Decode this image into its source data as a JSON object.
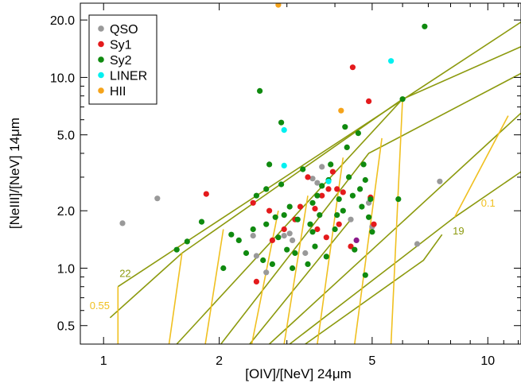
{
  "chart_data": {
    "type": "scatter",
    "xlabel": "[OIV]/[NeV] 24μm",
    "ylabel": "[NeIII]/[NeV] 14μm",
    "xscale": "log",
    "yscale": "log",
    "xlim": [
      0.87,
      12.2
    ],
    "ylim": [
      0.4,
      24.5
    ],
    "xticks": [
      {
        "v": 1,
        "label": "1"
      },
      {
        "v": 2,
        "label": "2"
      },
      {
        "v": 5,
        "label": "5"
      },
      {
        "v": 10,
        "label": "10"
      }
    ],
    "yticks": [
      {
        "v": 0.5,
        "label": "0.5"
      },
      {
        "v": 1,
        "label": "1.0"
      },
      {
        "v": 2,
        "label": "2.0"
      },
      {
        "v": 5,
        "label": "5.0"
      },
      {
        "v": 10,
        "label": "10.0"
      },
      {
        "v": 20,
        "label": "20.0"
      }
    ],
    "grid": false,
    "legend_position": "top-left",
    "series": [
      {
        "name": "QSO",
        "color": "#999999",
        "points": [
          [
            1.12,
            1.72
          ],
          [
            1.38,
            2.32
          ],
          [
            2.45,
            1.48
          ],
          [
            2.5,
            1.16
          ],
          [
            2.65,
            0.95
          ],
          [
            2.95,
            1.48
          ],
          [
            3.05,
            1.52
          ],
          [
            3.1,
            1.4
          ],
          [
            3.35,
            1.2
          ],
          [
            3.5,
            2.95
          ],
          [
            3.6,
            2.8
          ],
          [
            3.7,
            3.4
          ],
          [
            4.4,
            1.8
          ],
          [
            4.9,
            2.2
          ],
          [
            5.0,
            1.65
          ],
          [
            6.55,
            1.34
          ],
          [
            7.5,
            2.85
          ]
        ]
      },
      {
        "name": "Sy1",
        "color": "#e41a1c",
        "points": [
          [
            1.85,
            2.45
          ],
          [
            2.45,
            2.2
          ],
          [
            2.5,
            0.85
          ],
          [
            2.7,
            2.0
          ],
          [
            2.75,
            1.4
          ],
          [
            2.95,
            1.6
          ],
          [
            3.15,
            1.8
          ],
          [
            3.25,
            2.1
          ],
          [
            3.4,
            3.0
          ],
          [
            3.55,
            2.05
          ],
          [
            3.6,
            1.6
          ],
          [
            3.7,
            2.4
          ],
          [
            3.8,
            1.45
          ],
          [
            3.85,
            2.6
          ],
          [
            3.95,
            3.2
          ],
          [
            4.05,
            2.6
          ],
          [
            4.1,
            1.7
          ],
          [
            4.2,
            2.5
          ],
          [
            4.4,
            1.3
          ],
          [
            4.45,
            11.3
          ],
          [
            4.9,
            7.5
          ],
          [
            4.95,
            2.35
          ],
          [
            5.05,
            1.7
          ]
        ]
      },
      {
        "name": "Sy2",
        "color": "#0f8a0f",
        "points": [
          [
            1.55,
            1.25
          ],
          [
            1.65,
            1.38
          ],
          [
            1.8,
            1.75
          ],
          [
            2.05,
            1.0
          ],
          [
            2.15,
            1.5
          ],
          [
            2.25,
            1.4
          ],
          [
            2.35,
            1.2
          ],
          [
            2.45,
            1.6
          ],
          [
            2.5,
            2.4
          ],
          [
            2.55,
            8.5
          ],
          [
            2.6,
            1.1
          ],
          [
            2.65,
            1.7
          ],
          [
            2.65,
            2.6
          ],
          [
            2.7,
            3.5
          ],
          [
            2.75,
            1.05
          ],
          [
            2.85,
            1.45
          ],
          [
            2.9,
            2.75
          ],
          [
            2.95,
            1.9
          ],
          [
            3.0,
            1.25
          ],
          [
            3.05,
            2.1
          ],
          [
            3.1,
            1.0
          ],
          [
            3.15,
            1.2
          ],
          [
            3.2,
            1.8
          ],
          [
            3.3,
            3.3
          ],
          [
            3.4,
            1.05
          ],
          [
            3.45,
            1.7
          ],
          [
            3.5,
            2.2
          ],
          [
            3.55,
            1.3
          ],
          [
            3.6,
            2.4
          ],
          [
            3.65,
            1.9
          ],
          [
            3.7,
            2.7
          ],
          [
            3.8,
            1.15
          ],
          [
            3.85,
            2.9
          ],
          [
            3.9,
            3.5
          ],
          [
            4.0,
            1.6
          ],
          [
            4.05,
            1.9
          ],
          [
            4.1,
            2.3
          ],
          [
            4.2,
            2.0
          ],
          [
            4.3,
            4.3
          ],
          [
            4.35,
            3.0
          ],
          [
            4.45,
            2.4
          ],
          [
            4.5,
            1.25
          ],
          [
            4.6,
            5.1
          ],
          [
            4.65,
            2.6
          ],
          [
            4.7,
            2.1
          ],
          [
            4.75,
            3.5
          ],
          [
            4.8,
            2.9
          ],
          [
            4.9,
            1.85
          ],
          [
            4.95,
            2.3
          ],
          [
            5.0,
            1.55
          ],
          [
            2.9,
            5.8
          ],
          [
            4.25,
            5.5
          ],
          [
            6.0,
            7.7
          ],
          [
            6.85,
            18.5
          ],
          [
            5.85,
            2.3
          ],
          [
            4.8,
            0.92
          ],
          [
            3.5,
            1.55
          ],
          [
            2.8,
            1.85
          ]
        ]
      },
      {
        "name": "LINER",
        "color": "#00f0f0",
        "points": [
          [
            2.95,
            5.3
          ],
          [
            2.95,
            3.45
          ],
          [
            3.85,
            2.85
          ],
          [
            5.6,
            12.2
          ]
        ]
      },
      {
        "name": "HII",
        "color": "#f5a31a",
        "points": [
          [
            2.85,
            24.0
          ],
          [
            4.15,
            6.7
          ]
        ]
      },
      {
        "name": "",
        "color": "#8b1a8b",
        "points": [
          [
            4.55,
            1.4
          ]
        ]
      }
    ],
    "grid_lines": {
      "olive": [
        {
          "points": [
            [
              1.09,
              0.8
            ],
            [
              12.2,
              19.5
            ]
          ]
        },
        {
          "points": [
            [
              1.04,
              0.55
            ],
            [
              1.6,
              1.2
            ]
          ]
        },
        {
          "points": [
            [
              1.6,
              1.2
            ],
            [
              6.0,
              7.7
            ],
            [
              12.2,
              14.5
            ]
          ]
        },
        {
          "points": [
            [
              1.55,
              0.4
            ],
            [
              6.0,
              7.7
            ]
          ]
        },
        {
          "points": [
            [
              2.02,
              0.4
            ],
            [
              4.9,
              4.0
            ],
            [
              12.2,
              10.5
            ]
          ]
        },
        {
          "points": [
            [
              2.4,
              0.4
            ],
            [
              4.4,
              1.8
            ]
          ]
        },
        {
          "points": [
            [
              2.7,
              0.4
            ],
            [
              12.2,
              6.5
            ]
          ]
        },
        {
          "points": [
            [
              3.05,
              0.4
            ],
            [
              8.2,
              1.85
            ],
            [
              12.2,
              3.2
            ]
          ]
        },
        {
          "points": [
            [
              3.35,
              0.4
            ],
            [
              6.8,
              1.1
            ],
            [
              7.6,
              1.5
            ]
          ]
        }
      ],
      "yellow": [
        {
          "points": [
            [
              1.09,
              0.4
            ],
            [
              1.09,
              0.8
            ]
          ]
        },
        {
          "points": [
            [
              1.48,
              0.4
            ],
            [
              1.6,
              1.2
            ]
          ]
        },
        {
          "points": [
            [
              1.84,
              0.4
            ],
            [
              2.05,
              1.6
            ]
          ]
        },
        {
          "points": [
            [
              2.43,
              0.4
            ],
            [
              2.85,
              2.0
            ]
          ]
        },
        {
          "points": [
            [
              2.95,
              0.4
            ],
            [
              3.4,
              2.4
            ]
          ]
        },
        {
          "points": [
            [
              3.6,
              0.4
            ],
            [
              4.2,
              3.8
            ]
          ]
        },
        {
          "points": [
            [
              4.5,
              0.4
            ],
            [
              5.3,
              4.8
            ]
          ]
        },
        {
          "points": [
            [
              5.6,
              0.4
            ],
            [
              6.0,
              7.7
            ]
          ]
        },
        {
          "points": [
            [
              8.2,
              1.85
            ],
            [
              11.3,
              6.3
            ]
          ]
        }
      ]
    },
    "annotations": [
      {
        "text": "22",
        "x": 1.1,
        "y": 0.9,
        "color": "#8c9a0e"
      },
      {
        "text": "0.55",
        "x": 0.92,
        "y": 0.61,
        "color": "#f0c020"
      },
      {
        "text": "19",
        "x": 8.1,
        "y": 1.5,
        "color": "#8c9a0e"
      },
      {
        "text": "0.1",
        "x": 9.6,
        "y": 2.1,
        "color": "#f0c020"
      }
    ]
  }
}
